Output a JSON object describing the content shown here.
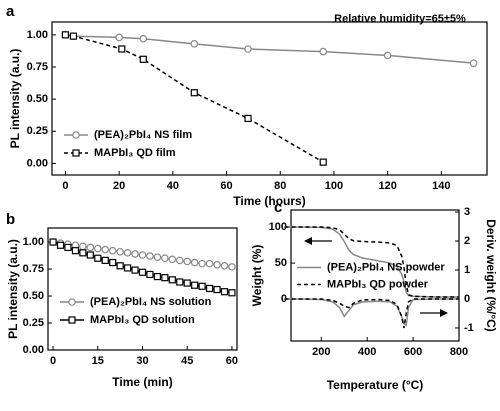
{
  "chart_data": [
    {
      "type": "line",
      "panel_label": "a",
      "annotation": "Relative humidity=65±5%",
      "xlabel": "Time (hours)",
      "ylabel": "PL intensity (a.u.)",
      "xlim": [
        -5,
        157
      ],
      "ylim": [
        -0.09,
        1.1
      ],
      "xticks": [
        0,
        20,
        40,
        60,
        80,
        100,
        120,
        140
      ],
      "yticks": [
        {
          "value": 0,
          "label": "0.00"
        },
        {
          "value": 0.25,
          "label": "0.25"
        },
        {
          "value": 0.5,
          "label": "0.50"
        },
        {
          "value": 0.75,
          "label": "0.75"
        },
        {
          "value": 1,
          "label": "1.00"
        }
      ],
      "legend": "lower left",
      "series": [
        {
          "name": "(PEA)₂PbI₄ NS film",
          "color": "#888888",
          "marker": "circle",
          "dash": false,
          "x": [
            0,
            3,
            20,
            29,
            48,
            68,
            96,
            120,
            152
          ],
          "values": [
            1.0,
            0.99,
            0.98,
            0.97,
            0.93,
            0.89,
            0.87,
            0.84,
            0.78
          ]
        },
        {
          "name": "MAPbI₃ QD film",
          "color": "#000000",
          "marker": "square",
          "dash": true,
          "x": [
            0,
            3,
            21,
            29,
            48,
            68,
            96
          ],
          "values": [
            1.0,
            0.99,
            0.89,
            0.81,
            0.55,
            0.35,
            0.01
          ]
        }
      ]
    },
    {
      "type": "line",
      "panel_label": "b",
      "xlabel": "Time (min)",
      "ylabel": "PL intensity (a.u.)",
      "xlim": [
        -1.7,
        61.7
      ],
      "ylim": [
        0,
        1.13
      ],
      "xticks": [
        0,
        15,
        30,
        45,
        60
      ],
      "yticks": [
        {
          "value": 0,
          "label": "0.00"
        },
        {
          "value": 0.25,
          "label": "0.25"
        },
        {
          "value": 0.5,
          "label": "0.50"
        },
        {
          "value": 0.75,
          "label": "0.75"
        },
        {
          "value": 1,
          "label": "1.00"
        }
      ],
      "legend": "lower left",
      "series": [
        {
          "name": "(PEA)₂PbI₄ NS solution",
          "color": "#888888",
          "marker": "circle",
          "dash": false,
          "x": [
            0,
            2.5,
            5,
            7.5,
            10,
            12.5,
            15,
            17.5,
            20,
            22.5,
            25,
            27.5,
            30,
            32.5,
            35,
            37.5,
            40,
            42.5,
            45,
            47.5,
            50,
            52.5,
            55,
            57.5,
            60
          ],
          "values": [
            1.0,
            0.99,
            0.98,
            0.97,
            0.96,
            0.95,
            0.94,
            0.93,
            0.92,
            0.91,
            0.9,
            0.89,
            0.88,
            0.87,
            0.86,
            0.85,
            0.84,
            0.83,
            0.82,
            0.81,
            0.8,
            0.8,
            0.79,
            0.78,
            0.77
          ]
        },
        {
          "name": "MAPbI₃ QD solution",
          "color": "#000000",
          "marker": "square",
          "dash": false,
          "x": [
            0,
            2.5,
            5,
            7.5,
            10,
            12.5,
            15,
            17.5,
            20,
            22.5,
            25,
            27.5,
            30,
            32.5,
            35,
            37.5,
            40,
            42.5,
            45,
            47.5,
            50,
            52.5,
            55,
            57.5,
            60
          ],
          "values": [
            1.0,
            0.97,
            0.95,
            0.92,
            0.9,
            0.88,
            0.85,
            0.83,
            0.81,
            0.78,
            0.76,
            0.74,
            0.72,
            0.7,
            0.68,
            0.67,
            0.65,
            0.63,
            0.62,
            0.6,
            0.59,
            0.57,
            0.56,
            0.54,
            0.53
          ]
        }
      ]
    },
    {
      "type": "line",
      "panel_label": "c",
      "xlabel": "Temperature (°C)",
      "ylabel": "Weight (%)",
      "y2label": "Deriv. weight (%/°C)",
      "xlim": [
        68,
        800
      ],
      "ylim": [
        -58,
        123.6
      ],
      "y2lim": [
        -1.45,
        3.07
      ],
      "xticks": [
        200,
        400,
        600,
        800
      ],
      "yticks": [
        0,
        50,
        100
      ],
      "y2ticks": [
        -1,
        0,
        1,
        2,
        3
      ],
      "legend": "center",
      "series": [
        {
          "name": "(PEA)₂PbI₄ NS powder",
          "color": "#888888",
          "dash": false,
          "x": [
            40,
            100,
            200,
            250,
            280,
            300,
            320,
            340,
            380,
            450,
            500,
            530,
            550,
            560,
            570,
            580,
            600,
            700,
            800
          ],
          "values": [
            100,
            100,
            99.5,
            97,
            90,
            80,
            68,
            62,
            57,
            53,
            50,
            45,
            35,
            25,
            10,
            5,
            4,
            3,
            3
          ]
        },
        {
          "name": "MAPbI₃ QD powder",
          "color": "#000000",
          "dash": true,
          "x": [
            40,
            100,
            200,
            250,
            280,
            300,
            320,
            340,
            380,
            450,
            500,
            530,
            550,
            560,
            570,
            580,
            600,
            700,
            800
          ],
          "values": [
            100,
            100,
            100,
            99,
            96,
            90,
            84,
            81,
            80,
            79,
            78,
            74,
            60,
            45,
            20,
            6,
            4,
            3,
            3
          ]
        },
        {
          "color": "#888888",
          "dash": false,
          "axis": "y2",
          "x": [
            40,
            100,
            200,
            250,
            280,
            300,
            320,
            340,
            380,
            450,
            500,
            530,
            550,
            560,
            570,
            580,
            600,
            700,
            800
          ],
          "values": [
            0,
            0,
            -0.02,
            -0.1,
            -0.3,
            -0.6,
            -0.4,
            -0.2,
            -0.1,
            -0.08,
            -0.1,
            -0.25,
            -0.6,
            -0.85,
            -0.9,
            -0.3,
            -0.02,
            0,
            0
          ]
        },
        {
          "color": "#000000",
          "dash": true,
          "axis": "y2",
          "x": [
            40,
            100,
            200,
            250,
            280,
            300,
            320,
            340,
            380,
            450,
            500,
            530,
            550,
            560,
            570,
            580,
            600,
            700,
            800
          ],
          "values": [
            0,
            0,
            0,
            -0.05,
            -0.15,
            -0.25,
            -0.3,
            -0.15,
            -0.03,
            -0.02,
            -0.05,
            -0.2,
            -0.6,
            -1.0,
            -0.5,
            -0.1,
            0,
            0,
            0
          ]
        }
      ]
    }
  ]
}
